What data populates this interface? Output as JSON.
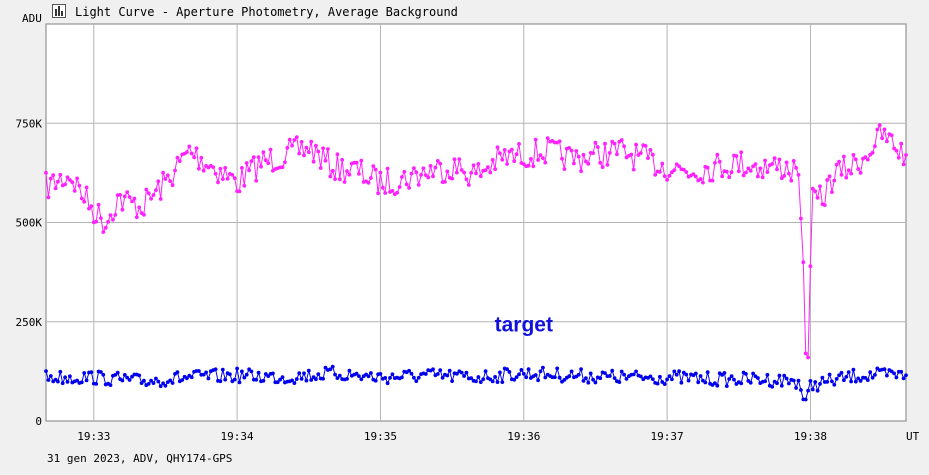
{
  "window": {
    "title": "Light Curve - Aperture Photometry, Average Background",
    "icon": "light-curve-icon"
  },
  "footer": "31 gen 2023, ADV, QHY174-GPS",
  "chart_data": {
    "type": "line",
    "ylabel": "ADU",
    "xlabel": "UT",
    "ylim": [
      0,
      1000000
    ],
    "xlim": [
      "19:32:40",
      "19:38:40"
    ],
    "yticks": [
      {
        "value": 0,
        "label": "0"
      },
      {
        "value": 250000,
        "label": "250K"
      },
      {
        "value": 500000,
        "label": "500K"
      },
      {
        "value": 750000,
        "label": "750K"
      }
    ],
    "xticks": [
      "19:33",
      "19:34",
      "19:35",
      "19:36",
      "19:37",
      "19:38"
    ],
    "grid": true,
    "annotations": [
      {
        "text": "target",
        "x": "19:36:00",
        "y": 225000,
        "color": "#1111dd"
      }
    ],
    "series": [
      {
        "color": "#ff22ff",
        "marker": "circle",
        "points": [
          [
            "19:32:40",
            590000
          ],
          [
            "19:32:50",
            620000
          ],
          [
            "19:33:00",
            530000
          ],
          [
            "19:33:05",
            500000
          ],
          [
            "19:33:10",
            560000
          ],
          [
            "19:33:20",
            540000
          ],
          [
            "19:33:30",
            600000
          ],
          [
            "19:33:40",
            680000
          ],
          [
            "19:33:50",
            640000
          ],
          [
            "19:34:00",
            600000
          ],
          [
            "19:34:10",
            650000
          ],
          [
            "19:34:20",
            670000
          ],
          [
            "19:34:30",
            690000
          ],
          [
            "19:34:40",
            640000
          ],
          [
            "19:34:50",
            630000
          ],
          [
            "19:35:00",
            600000
          ],
          [
            "19:35:10",
            610000
          ],
          [
            "19:35:20",
            630000
          ],
          [
            "19:35:30",
            640000
          ],
          [
            "19:35:40",
            620000
          ],
          [
            "19:35:50",
            660000
          ],
          [
            "19:36:00",
            670000
          ],
          [
            "19:36:10",
            680000
          ],
          [
            "19:36:20",
            660000
          ],
          [
            "19:36:30",
            670000
          ],
          [
            "19:36:40",
            680000
          ],
          [
            "19:36:50",
            660000
          ],
          [
            "19:37:00",
            640000
          ],
          [
            "19:37:10",
            630000
          ],
          [
            "19:37:20",
            640000
          ],
          [
            "19:37:30",
            650000
          ],
          [
            "19:37:40",
            640000
          ],
          [
            "19:37:50",
            640000
          ],
          [
            "19:37:55",
            620000
          ],
          [
            "19:37:57",
            400000
          ],
          [
            "19:37:58",
            200000
          ],
          [
            "19:37:59",
            160000
          ],
          [
            "19:38:00",
            390000
          ],
          [
            "19:38:01",
            550000
          ],
          [
            "19:38:05",
            560000
          ],
          [
            "19:38:10",
            620000
          ],
          [
            "19:38:20",
            650000
          ],
          [
            "19:38:30",
            720000
          ],
          [
            "19:38:40",
            670000
          ]
        ]
      },
      {
        "name": "target",
        "color": "#0000ee",
        "marker": "circle",
        "points": [
          [
            "19:32:40",
            110000
          ],
          [
            "19:33:00",
            110000
          ],
          [
            "19:33:20",
            100000
          ],
          [
            "19:33:40",
            110000
          ],
          [
            "19:34:00",
            115000
          ],
          [
            "19:34:20",
            110000
          ],
          [
            "19:34:40",
            120000
          ],
          [
            "19:35:00",
            110000
          ],
          [
            "19:35:20",
            115000
          ],
          [
            "19:35:40",
            110000
          ],
          [
            "19:36:00",
            120000
          ],
          [
            "19:36:20",
            115000
          ],
          [
            "19:36:40",
            110000
          ],
          [
            "19:37:00",
            110000
          ],
          [
            "19:37:20",
            105000
          ],
          [
            "19:37:40",
            105000
          ],
          [
            "19:37:55",
            100000
          ],
          [
            "19:37:58",
            40000
          ],
          [
            "19:38:00",
            90000
          ],
          [
            "19:38:20",
            115000
          ],
          [
            "19:38:40",
            115000
          ]
        ]
      }
    ]
  }
}
